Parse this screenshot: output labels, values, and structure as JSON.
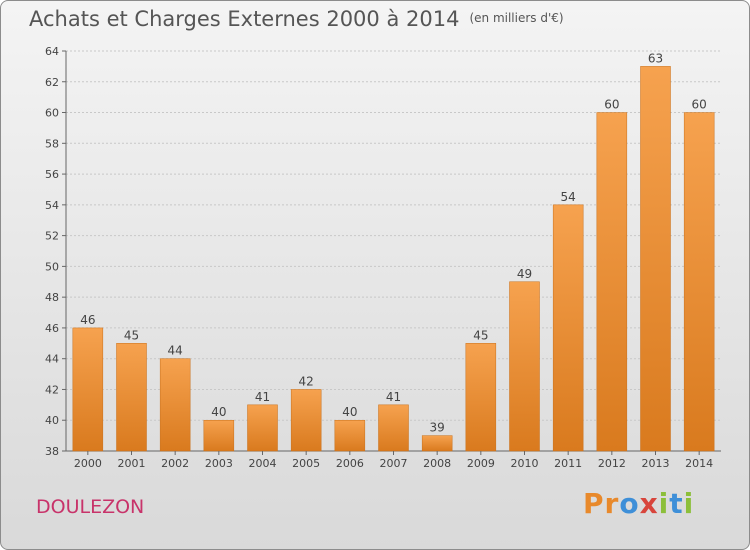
{
  "header": {
    "title": "Achats et Charges Externes 2000 à 2014",
    "unit": "(en milliers d'€)"
  },
  "footer": {
    "commune": "DOULEZON",
    "logo_letters": [
      "P",
      "r",
      "o",
      "x",
      "i",
      "t",
      "i"
    ],
    "logo_colors": [
      "#e8892b",
      "#e8892b",
      "#3e8fd8",
      "#d8453c",
      "#8cbf3a",
      "#3e8fd8",
      "#8cbf3a"
    ]
  },
  "chart_data": {
    "type": "bar",
    "title": "Achats et Charges Externes 2000 à 2014",
    "subtitle": "(en milliers d'€)",
    "categories": [
      "2000",
      "2001",
      "2002",
      "2003",
      "2004",
      "2005",
      "2006",
      "2007",
      "2008",
      "2009",
      "2010",
      "2011",
      "2012",
      "2013",
      "2014"
    ],
    "values": [
      46,
      45,
      44,
      40,
      41,
      42,
      40,
      41,
      39,
      45,
      49,
      54,
      60,
      63,
      60
    ],
    "ylim": [
      38,
      64
    ],
    "yticks": [
      38,
      40,
      42,
      44,
      46,
      48,
      50,
      52,
      54,
      56,
      58,
      60,
      62,
      64
    ],
    "grid": true,
    "bar_color_top": "#f6a24f",
    "bar_color_bottom": "#d97a1e"
  }
}
